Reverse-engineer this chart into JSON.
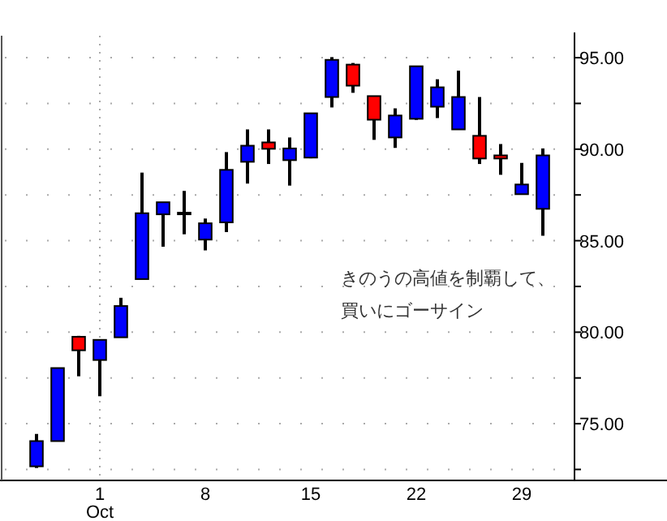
{
  "chart_data": {
    "type": "candlestick",
    "categories": [
      null,
      null,
      null,
      "1\nOct",
      null,
      null,
      null,
      null,
      "8",
      null,
      null,
      null,
      null,
      "15",
      null,
      null,
      null,
      null,
      "22",
      null,
      null,
      null,
      null,
      "29",
      null
    ],
    "ohlc": [
      [
        72.67,
        74.44,
        72.58,
        74.05
      ],
      [
        74.05,
        78.04,
        74.05,
        78.04
      ],
      [
        79.75,
        79.8,
        77.59,
        79.01
      ],
      [
        78.48,
        79.58,
        76.5,
        79.58
      ],
      [
        79.72,
        81.88,
        79.72,
        81.43
      ],
      [
        82.9,
        88.72,
        82.9,
        86.5
      ],
      [
        86.44,
        87.1,
        84.67,
        87.1
      ],
      [
        86.53,
        87.72,
        85.35,
        86.53
      ],
      [
        85.06,
        86.21,
        84.47,
        85.95
      ],
      [
        86.0,
        89.84,
        85.47,
        88.87
      ],
      [
        89.31,
        91.08,
        88.12,
        90.19
      ],
      [
        90.37,
        91.08,
        89.19,
        90.02
      ],
      [
        89.4,
        90.64,
        88.01,
        90.04
      ],
      [
        89.54,
        91.96,
        89.5,
        91.96
      ],
      [
        92.85,
        95.03,
        92.28,
        94.88
      ],
      [
        94.62,
        94.71,
        93.08,
        93.47
      ],
      [
        92.9,
        92.9,
        90.51,
        91.61
      ],
      [
        90.64,
        92.23,
        90.07,
        91.84
      ],
      [
        91.66,
        94.53,
        91.6,
        94.53
      ],
      [
        92.32,
        93.82,
        91.7,
        93.38
      ],
      [
        91.08,
        94.29,
        91.08,
        92.85
      ],
      [
        90.73,
        92.85,
        89.19,
        89.49
      ],
      [
        89.66,
        90.28,
        88.6,
        89.49
      ],
      [
        87.54,
        89.25,
        87.54,
        88.07
      ],
      [
        86.74,
        90.04,
        85.27,
        89.66
      ]
    ],
    "colors": [
      "#0000ff",
      "#0000ff",
      "#ff0000",
      "#0000ff",
      "#0000ff",
      "#0000ff",
      "#0000ff",
      "#0000ff",
      "#0000ff",
      "#0000ff",
      "#0000ff",
      "#ff0000",
      "#0000ff",
      "#0000ff",
      "#0000ff",
      "#ff0000",
      "#ff0000",
      "#0000ff",
      "#0000ff",
      "#0000ff",
      "#0000ff",
      "#ff0000",
      "#ff0000",
      "#0000ff",
      "#0000ff"
    ],
    "ylim": [
      71.9,
      96.2
    ],
    "yticks": [
      {
        "value": 72.5,
        "label": null
      },
      {
        "value": 75,
        "label": "75.00"
      },
      {
        "value": 77.5,
        "label": null
      },
      {
        "value": 80,
        "label": "80.00"
      },
      {
        "value": 82.5,
        "label": null
      },
      {
        "value": 85,
        "label": "85.00"
      },
      {
        "value": 87.5,
        "label": null
      },
      {
        "value": 90,
        "label": "90.00"
      },
      {
        "value": 92.5,
        "label": null
      },
      {
        "value": 95,
        "label": "95.00"
      }
    ],
    "grid": "y",
    "ref_lines": [
      {
        "axis": "x",
        "value": "1\nOct",
        "line_style": "dotted",
        "color": "#aaaaaa"
      }
    ],
    "annotations": [
      "きのうの高値を制覇して、",
      "買いにゴーサイン"
    ]
  }
}
